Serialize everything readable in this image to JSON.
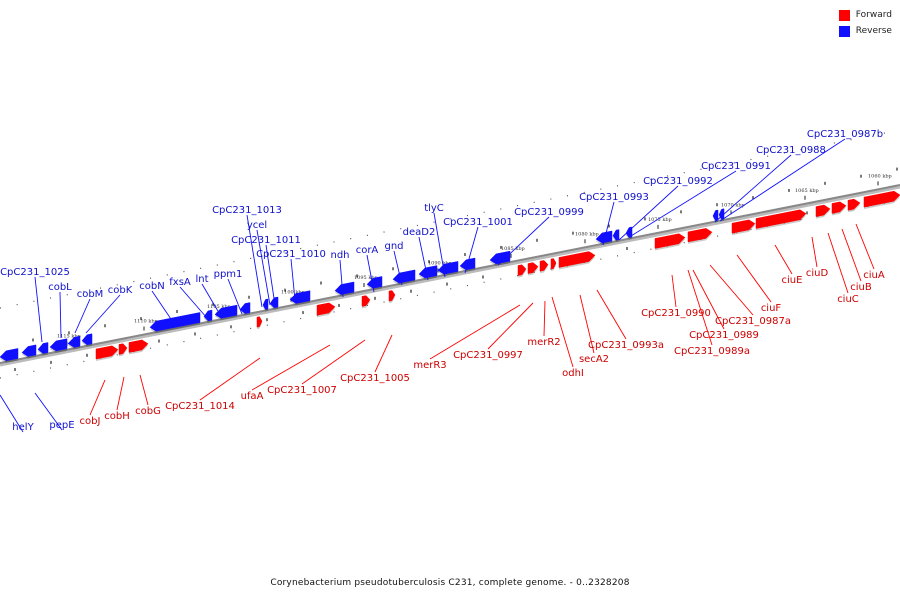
{
  "legend": {
    "forward": {
      "label": "Forward",
      "color": "#ff0000"
    },
    "reverse": {
      "label": "Reverse",
      "color": "#1010ff"
    }
  },
  "caption": "Corynebacterium pseudotuberculosis C231, complete genome. - 0..2328208",
  "colors": {
    "backbone": "#888888",
    "forward": "#ff0000",
    "reverse": "#1010ff",
    "forward_label": "#cc0000",
    "reverse_label": "#1010cc"
  },
  "axis": {
    "unit": "kbp",
    "ticks": [
      "1060 kbp",
      "1065 kbp",
      "1070 kbp",
      "1075 kbp",
      "1080 kbp",
      "1085 kbp",
      "1090 kbp",
      "1095 kbp",
      "1100 kbp",
      "1105 kbp",
      "1110 kbp",
      "1115 kbp"
    ]
  },
  "reverse_genes": [
    "helY",
    "pepE",
    "CpC231_1025",
    "cobL",
    "cobM",
    "cobK",
    "cobN",
    "fxsA",
    "lnt",
    "ppm1",
    "CpC231_1013",
    "ycel",
    "CpC231_1011",
    "CpC231_1010",
    "ndh",
    "corA",
    "gnd",
    "deaD2",
    "tlyC",
    "CpC231_1001",
    "CpC231_0999",
    "CpC231_0993",
    "CpC231_0992",
    "CpC231_0991",
    "CpC231_0988",
    "CpC231_0987b"
  ],
  "forward_genes": [
    "cobJ",
    "cobH",
    "cobG",
    "CpC231_1014",
    "ufaA",
    "CpC231_1007",
    "CpC231_1005",
    "merR3",
    "CpC231_0997",
    "merR2",
    "odhI",
    "secA2",
    "CpC231_0993a",
    "CpC231_0990",
    "CpC231_0989",
    "CpC231_0989a",
    "CpC231_0987a",
    "ciuF",
    "ciuE",
    "ciuD",
    "ciuC",
    "ciuB",
    "ciuA"
  ]
}
